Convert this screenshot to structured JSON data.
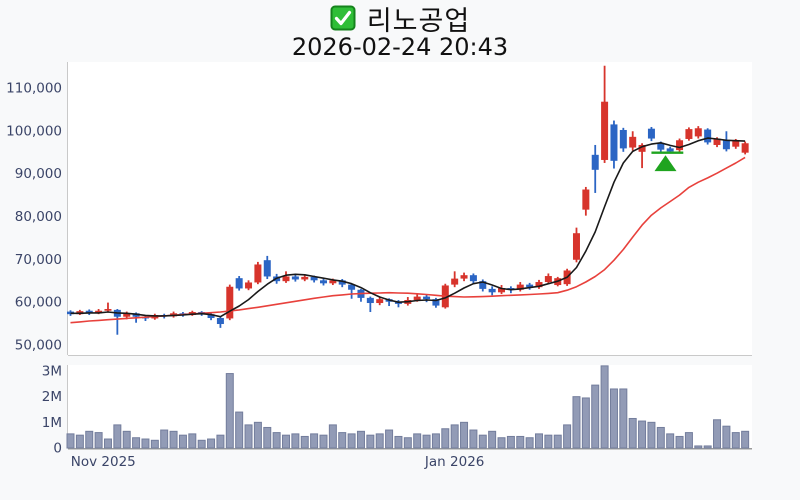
{
  "header": {
    "checkbox_icon": "green-checkbox-icon",
    "stock_name": "리노공업",
    "datetime": "2026-02-24 20:43"
  },
  "colors": {
    "up": "#d7342c",
    "down": "#2b65c4",
    "ma_fast": "#1a1a1a",
    "ma_slow": "#e8413c",
    "volume_fill": "#929bb6",
    "volume_stroke": "#737d9c",
    "axis_text": "#3b4568",
    "axis_line": "#c9c9c9",
    "baseline": "#9a9a9a",
    "plot_bg": "#ffffff",
    "page_bg": "#f8f9fa",
    "signal_green": "#1fa41f",
    "checkbox_green": "#2fbe37",
    "checkbox_border": "#15831c",
    "title_text": "#111111"
  },
  "chart_data": {
    "type": "candlestick_with_volume",
    "title": "리노공업",
    "subtitle": "2026-02-24 20:43",
    "legend_position": "none",
    "grid": false,
    "price_axis": {
      "ticks": [
        {
          "label": "110,000",
          "value": 110000
        },
        {
          "label": "100,000",
          "value": 100000
        },
        {
          "label": "90,000",
          "value": 90000
        },
        {
          "label": "80,000",
          "value": 80000
        },
        {
          "label": "70,000",
          "value": 70000
        },
        {
          "label": "60,000",
          "value": 60000
        },
        {
          "label": "50,000",
          "value": 50000
        }
      ],
      "range": [
        47600,
        116100
      ]
    },
    "volume_axis": {
      "ticks": [
        {
          "label": "3M",
          "value": 3000000
        },
        {
          "label": "2M",
          "value": 2000000
        },
        {
          "label": "1M",
          "value": 1000000
        },
        {
          "label": "0",
          "value": 0
        }
      ],
      "range": [
        0,
        3230000
      ]
    },
    "x_axis": {
      "ticks": [
        {
          "label": "Nov 2025",
          "index": 3.5
        },
        {
          "label": "Jan 2026",
          "index": 41
        }
      ]
    },
    "ohlcv_note": "each row is [open, high, low, close, volume]",
    "candles": [
      [
        57800,
        58100,
        56800,
        57200,
        550000
      ],
      [
        57200,
        58200,
        57000,
        57900,
        500000
      ],
      [
        58000,
        58300,
        57000,
        57400,
        650000
      ],
      [
        57400,
        58400,
        57200,
        58000,
        600000
      ],
      [
        58000,
        59900,
        57600,
        58400,
        350000
      ],
      [
        58200,
        58400,
        52400,
        56600,
        900000
      ],
      [
        56600,
        57800,
        56000,
        57400,
        650000
      ],
      [
        57400,
        57600,
        55200,
        56600,
        400000
      ],
      [
        56600,
        57000,
        55600,
        56200,
        350000
      ],
      [
        56200,
        57300,
        55900,
        57000,
        300000
      ],
      [
        57000,
        57300,
        56200,
        56700,
        700000
      ],
      [
        56700,
        57800,
        56400,
        57400,
        650000
      ],
      [
        57400,
        57700,
        56600,
        57000,
        500000
      ],
      [
        57000,
        58000,
        56800,
        57700,
        550000
      ],
      [
        57700,
        57900,
        56800,
        57200,
        300000
      ],
      [
        57200,
        57400,
        55800,
        56300,
        350000
      ],
      [
        56300,
        56500,
        54000,
        54900,
        500000
      ],
      [
        56200,
        64100,
        55800,
        63600,
        2900000
      ],
      [
        65600,
        66100,
        62700,
        63200,
        1400000
      ],
      [
        63200,
        65100,
        62800,
        64600,
        900000
      ],
      [
        64600,
        69400,
        64200,
        68800,
        1000000
      ],
      [
        69800,
        70800,
        65400,
        66000,
        800000
      ],
      [
        66000,
        66600,
        64300,
        64900,
        600000
      ],
      [
        64900,
        67200,
        64500,
        66000,
        500000
      ],
      [
        66000,
        66400,
        64800,
        65300,
        550000
      ],
      [
        65300,
        66300,
        64900,
        65900,
        450000
      ],
      [
        65900,
        66200,
        64600,
        65100,
        550000
      ],
      [
        65100,
        65400,
        63900,
        64400,
        500000
      ],
      [
        64400,
        65500,
        64000,
        65100,
        900000
      ],
      [
        65100,
        65400,
        63500,
        64100,
        600000
      ],
      [
        64100,
        64300,
        60800,
        62900,
        550000
      ],
      [
        62900,
        63100,
        60100,
        61000,
        650000
      ],
      [
        61000,
        61300,
        57700,
        59800,
        500000
      ],
      [
        59800,
        61100,
        59300,
        60700,
        550000
      ],
      [
        60700,
        60900,
        59100,
        60100,
        700000
      ],
      [
        60100,
        60500,
        58800,
        59600,
        450000
      ],
      [
        59600,
        61200,
        59200,
        60500,
        400000
      ],
      [
        60500,
        62100,
        60100,
        61300,
        550000
      ],
      [
        61300,
        61700,
        60000,
        60700,
        500000
      ],
      [
        60700,
        61000,
        58700,
        59200,
        550000
      ],
      [
        58800,
        64300,
        58500,
        63900,
        750000
      ],
      [
        64100,
        67200,
        63500,
        65500,
        900000
      ],
      [
        65500,
        66900,
        64900,
        66300,
        1000000
      ],
      [
        66300,
        66700,
        64300,
        64900,
        700000
      ],
      [
        64900,
        65300,
        62500,
        63100,
        500000
      ],
      [
        63100,
        63700,
        61600,
        62300,
        650000
      ],
      [
        62300,
        64000,
        61900,
        63300,
        400000
      ],
      [
        63300,
        63700,
        62100,
        62900,
        450000
      ],
      [
        62900,
        64700,
        62500,
        64100,
        450000
      ],
      [
        64100,
        64500,
        62900,
        63500,
        400000
      ],
      [
        63500,
        65200,
        63100,
        64700,
        550000
      ],
      [
        64700,
        66700,
        64200,
        66100,
        500000
      ],
      [
        64000,
        65900,
        63700,
        65600,
        500000
      ],
      [
        64200,
        67800,
        63800,
        67400,
        900000
      ],
      [
        69900,
        77400,
        69300,
        76100,
        2000000
      ],
      [
        81600,
        86900,
        80200,
        86300,
        1950000
      ],
      [
        94400,
        96700,
        85500,
        90900,
        2450000
      ],
      [
        93200,
        115200,
        92500,
        106800,
        3200000
      ],
      [
        101500,
        102400,
        91200,
        93000,
        2300000
      ],
      [
        100200,
        100700,
        95100,
        95900,
        2300000
      ],
      [
        96100,
        99900,
        95400,
        98600,
        1150000
      ],
      [
        95100,
        97100,
        91300,
        96700,
        1050000
      ],
      [
        100500,
        100900,
        97600,
        98200,
        1000000
      ],
      [
        97100,
        97500,
        94900,
        95600,
        800000
      ],
      [
        95900,
        96300,
        94700,
        95200,
        550000
      ],
      [
        95500,
        98200,
        95000,
        97800,
        450000
      ],
      [
        98100,
        100800,
        97700,
        100400,
        600000
      ],
      [
        98700,
        101100,
        98200,
        100600,
        80000
      ],
      [
        100300,
        100600,
        96800,
        97300,
        80000
      ],
      [
        96700,
        98500,
        96200,
        98200,
        1100000
      ],
      [
        97900,
        99900,
        95200,
        95700,
        850000
      ],
      [
        96300,
        98100,
        95800,
        97800,
        600000
      ],
      [
        94900,
        97500,
        94500,
        97100,
        650000
      ]
    ],
    "ma_fast": [
      57400,
      57400,
      57500,
      57500,
      57700,
      57500,
      57400,
      57200,
      56900,
      56800,
      56800,
      56900,
      57000,
      57200,
      57300,
      57100,
      56600,
      57900,
      59100,
      60600,
      62500,
      64200,
      65600,
      66300,
      66500,
      66400,
      66000,
      65600,
      65200,
      64900,
      64300,
      63400,
      62200,
      61200,
      60500,
      60000,
      60100,
      60400,
      60500,
      60400,
      61000,
      62100,
      63300,
      64300,
      64700,
      64000,
      63200,
      62900,
      63100,
      63400,
      63700,
      64300,
      64900,
      65800,
      68100,
      71900,
      76400,
      82300,
      88000,
      92500,
      95200,
      96300,
      96900,
      97200,
      96600,
      96100,
      96800,
      97700,
      98300,
      98100,
      97800,
      97700,
      97600
    ],
    "ma_slow": [
      55200,
      55400,
      55600,
      55750,
      55900,
      56050,
      56200,
      56350,
      56500,
      56650,
      56800,
      56950,
      57100,
      57250,
      57400,
      57550,
      57700,
      57950,
      58200,
      58500,
      58800,
      59150,
      59500,
      59850,
      60200,
      60550,
      60900,
      61200,
      61500,
      61700,
      61900,
      62000,
      62100,
      62150,
      62200,
      62150,
      62100,
      61950,
      61800,
      61600,
      61400,
      61300,
      61200,
      61250,
      61300,
      61400,
      61500,
      61600,
      61700,
      61800,
      61900,
      62050,
      62200,
      62800,
      63600,
      64700,
      66000,
      67600,
      69800,
      72300,
      75200,
      78000,
      80300,
      82000,
      83500,
      85000,
      86800,
      88000,
      89000,
      90100,
      91300,
      92500,
      93800
    ],
    "signal": {
      "name": "buy-signal-triangle",
      "index": 63.5,
      "apex_price": 94300,
      "base_price": 90600,
      "line_price": 94900,
      "line_from_index": 62,
      "line_to_index": 65.4
    }
  }
}
